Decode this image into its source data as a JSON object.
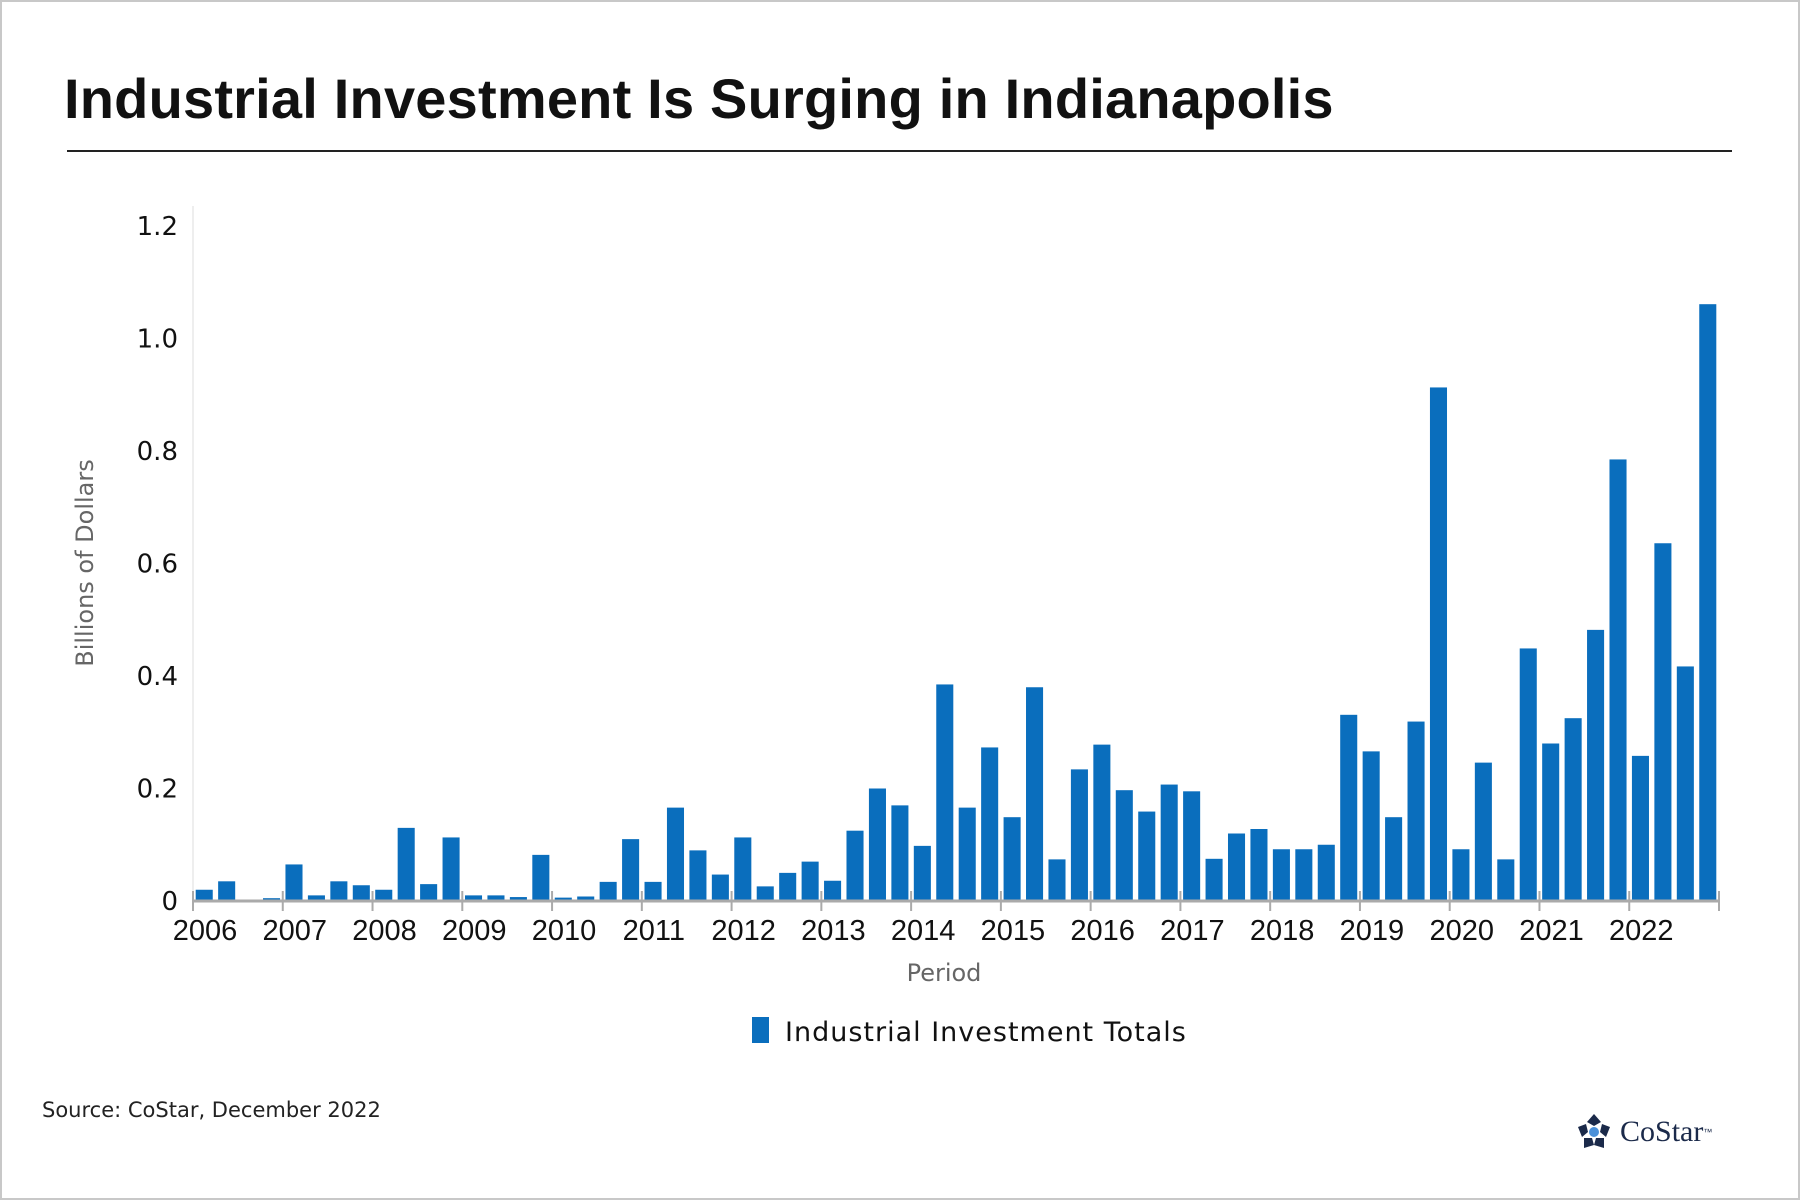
{
  "title": "Industrial Investment Is Surging in Indianapolis",
  "source": "Source: CoStar, December 2022",
  "logo": {
    "text": "CoStar",
    "trademark": "™",
    "icon": "costar-star-logo-icon"
  },
  "colors": {
    "bar": "#0a6ebd",
    "axis": "#aaaaaa",
    "text": "#111111"
  },
  "chart_data": {
    "type": "bar",
    "title": "Industrial Investment Is Surging in Indianapolis",
    "xlabel": "Period",
    "ylabel": "Billions of Dollars",
    "ylim": [
      0,
      1.2
    ],
    "yticks": [
      0,
      0.2,
      0.4,
      0.6,
      0.8,
      1.0,
      1.2
    ],
    "ytick_labels": [
      "0",
      "0.2",
      "0.4",
      "0.6",
      "0.8",
      "1.0",
      "1.2"
    ],
    "grid": false,
    "legend_placement": "bottom",
    "years": [
      "2006",
      "2007",
      "2008",
      "2009",
      "2010",
      "2011",
      "2012",
      "2013",
      "2014",
      "2015",
      "2016",
      "2017",
      "2018",
      "2019",
      "2020",
      "2021",
      "2022"
    ],
    "periods_per_year": 4,
    "series": [
      {
        "name": "Industrial Investment Totals",
        "values": [
          0.02,
          0.035,
          0.002,
          0.005,
          0.065,
          0.01,
          0.035,
          0.028,
          0.02,
          0.13,
          0.03,
          0.113,
          0.01,
          0.01,
          0.007,
          0.082,
          0.006,
          0.008,
          0.034,
          0.11,
          0.034,
          0.166,
          0.09,
          0.047,
          0.113,
          0.026,
          0.05,
          0.07,
          0.036,
          0.125,
          0.2,
          0.17,
          0.098,
          0.385,
          0.166,
          0.273,
          0.149,
          0.38,
          0.074,
          0.234,
          0.278,
          0.197,
          0.159,
          0.207,
          0.195,
          0.075,
          0.12,
          0.128,
          0.092,
          0.092,
          0.1,
          0.331,
          0.266,
          0.149,
          0.319,
          0.913,
          0.092,
          0.246,
          0.074,
          0.449,
          0.28,
          0.325,
          0.482,
          0.785,
          0.258,
          0.636,
          0.417,
          1.061
        ]
      }
    ]
  }
}
